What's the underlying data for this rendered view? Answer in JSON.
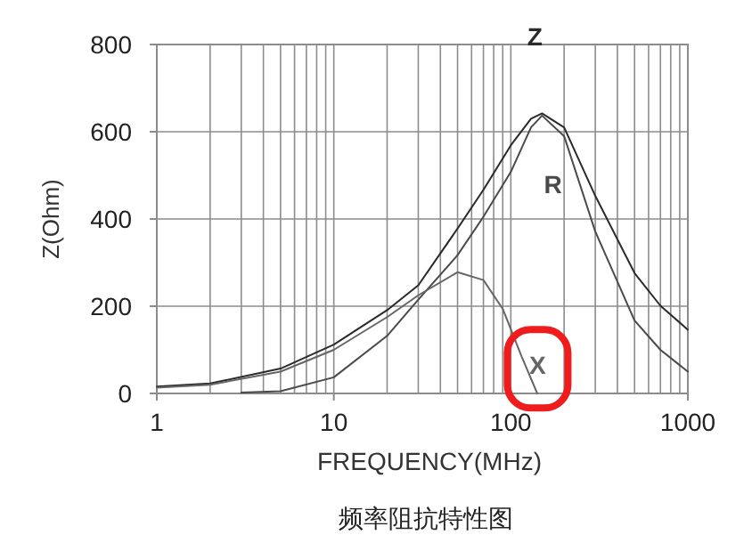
{
  "chart_data": {
    "type": "line",
    "xlabel": "FREQUENCY(MHz)",
    "ylabel": "Z(Ohm)",
    "log": "x",
    "xlim": [
      1,
      1000
    ],
    "xticks": [
      1,
      10,
      100,
      1000
    ],
    "ylim": [
      0,
      800
    ],
    "yticks": [
      0,
      200,
      400,
      600,
      800
    ],
    "grid": true,
    "marker": "none",
    "line_style": "solid",
    "series": [
      {
        "name": "Z",
        "color": "#2a2a2a",
        "x": [
          1,
          2,
          5,
          10,
          20,
          30,
          50,
          70,
          100,
          130,
          150,
          200,
          300,
          500,
          700,
          1000
        ],
        "values": [
          16,
          23,
          57,
          112,
          191,
          248,
          378,
          467,
          569,
          630,
          642,
          610,
          453,
          276,
          201,
          146
        ]
      },
      {
        "name": "R",
        "color": "#4a4a4a",
        "x": [
          3,
          5,
          10,
          20,
          30,
          50,
          70,
          100,
          130,
          150,
          200,
          300,
          500,
          700,
          1000
        ],
        "values": [
          2,
          5,
          37,
          132,
          215,
          317,
          405,
          508,
          610,
          637,
          590,
          371,
          167,
          100,
          50
        ]
      },
      {
        "name": "X",
        "color": "#666666",
        "x": [
          1,
          2,
          5,
          10,
          20,
          30,
          50,
          70,
          90,
          115,
          141
        ],
        "values": [
          13,
          20,
          50,
          100,
          175,
          225,
          278,
          260,
          194,
          85,
          0
        ]
      }
    ],
    "annotations": [
      "频率阻抗特性图"
    ]
  }
}
